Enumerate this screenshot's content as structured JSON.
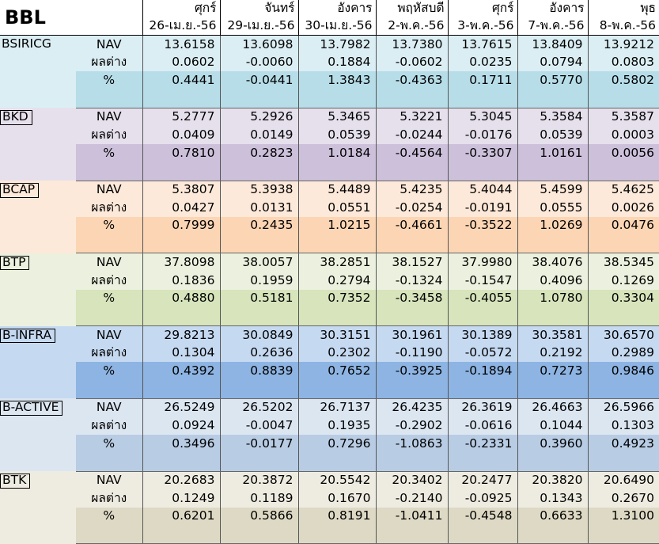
{
  "brand": "BBL",
  "days": [
    "ศุกร์",
    "จันทร์",
    "อังคาร",
    "พฤหัสบดี",
    "ศุกร์",
    "อังคาร",
    "พุธ"
  ],
  "dates": [
    "26-เม.ย.-56",
    "29-เม.ย.-56",
    "30-เม.ย.-56",
    "2-พ.ค.-56",
    "3-พ.ค.-56",
    "7-พ.ค.-56",
    "8-พ.ค.-56"
  ],
  "row_labels": [
    "NAV",
    "ผลต่าง",
    "%"
  ],
  "funds": [
    {
      "name": "BSIRICG",
      "colors": [
        "#dbeef3",
        "#dbeef3",
        "#b6dde8"
      ],
      "nav": [
        "13.6158",
        "13.6098",
        "13.7982",
        "13.7380",
        "13.7615",
        "13.8409",
        "13.9212"
      ],
      "change": [
        "0.0602",
        "-0.0060",
        "0.1884",
        "-0.0602",
        "0.0235",
        "0.0794",
        "0.0803"
      ],
      "pct": [
        "0.4441",
        "-0.0441",
        "1.3843",
        "-0.4363",
        "0.1711",
        "0.5770",
        "0.5802"
      ]
    },
    {
      "name": "BKD",
      "colors": [
        "#e5e0ec",
        "#e5e0ec",
        "#ccc0da"
      ],
      "nav": [
        "5.2777",
        "5.2926",
        "5.3465",
        "5.3221",
        "5.3045",
        "5.3584",
        "5.3587"
      ],
      "change": [
        "0.0409",
        "0.0149",
        "0.0539",
        "-0.0244",
        "-0.0176",
        "0.0539",
        "0.0003"
      ],
      "pct": [
        "0.7810",
        "0.2823",
        "1.0184",
        "-0.4564",
        "-0.3307",
        "1.0161",
        "0.0056"
      ]
    },
    {
      "name": "BCAP",
      "colors": [
        "#fde9d9",
        "#fde9d9",
        "#fcd5b4"
      ],
      "nav": [
        "5.3807",
        "5.3938",
        "5.4489",
        "5.4235",
        "5.4044",
        "5.4599",
        "5.4625"
      ],
      "change": [
        "0.0427",
        "0.0131",
        "0.0551",
        "-0.0254",
        "-0.0191",
        "0.0555",
        "0.0026"
      ],
      "pct": [
        "0.7999",
        "0.2435",
        "1.0215",
        "-0.4661",
        "-0.3522",
        "1.0269",
        "0.0476"
      ]
    },
    {
      "name": "BTP",
      "colors": [
        "#ebf1de",
        "#ebf1de",
        "#d7e4bc"
      ],
      "nav": [
        "37.8098",
        "38.0057",
        "38.2851",
        "38.1527",
        "37.9980",
        "38.4076",
        "38.5345"
      ],
      "change": [
        "0.1836",
        "0.1959",
        "0.2794",
        "-0.1324",
        "-0.1547",
        "0.4096",
        "0.1269"
      ],
      "pct": [
        "0.4880",
        "0.5181",
        "0.7352",
        "-0.3458",
        "-0.4055",
        "1.0780",
        "0.3304"
      ]
    },
    {
      "name": "B-INFRA",
      "colors": [
        "#c5d9f1",
        "#c5d9f1",
        "#8db4e2"
      ],
      "nav": [
        "29.8213",
        "30.0849",
        "30.3151",
        "30.1961",
        "30.1389",
        "30.3581",
        "30.6570"
      ],
      "change": [
        "0.1304",
        "0.2636",
        "0.2302",
        "-0.1190",
        "-0.0572",
        "0.2192",
        "0.2989"
      ],
      "pct": [
        "0.4392",
        "0.8839",
        "0.7652",
        "-0.3925",
        "-0.1894",
        "0.7273",
        "0.9846"
      ]
    },
    {
      "name": "B-ACTIVE",
      "colors": [
        "#dce6f1",
        "#dce6f1",
        "#b8cce4"
      ],
      "nav": [
        "26.5249",
        "26.5202",
        "26.7137",
        "26.4235",
        "26.3619",
        "26.4663",
        "26.5966"
      ],
      "change": [
        "0.0924",
        "-0.0047",
        "0.1935",
        "-0.2902",
        "-0.0616",
        "0.1044",
        "0.1303"
      ],
      "pct": [
        "0.3496",
        "-0.0177",
        "0.7296",
        "-1.0863",
        "-0.2331",
        "0.3960",
        "0.4923"
      ]
    },
    {
      "name": "BTK",
      "colors": [
        "#eeece1",
        "#eeece1",
        "#ddd9c4"
      ],
      "nav": [
        "20.2683",
        "20.3872",
        "20.5542",
        "20.3402",
        "20.2477",
        "20.3820",
        "20.6490"
      ],
      "change": [
        "0.1249",
        "0.1189",
        "0.1670",
        "-0.2140",
        "-0.0925",
        "0.1343",
        "0.2670"
      ],
      "pct": [
        "0.6201",
        "0.5866",
        "0.8191",
        "-1.0411",
        "-0.4548",
        "0.6633",
        "1.3100"
      ]
    }
  ]
}
